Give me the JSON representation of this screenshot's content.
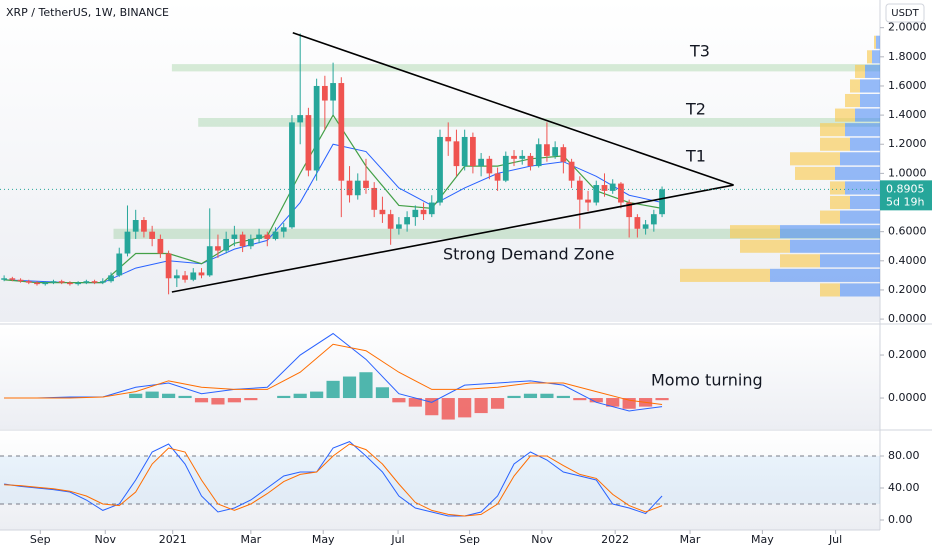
{
  "chart_data": [
    {
      "type": "candlestick",
      "title": "XRP / TetherUS, 1W, BINANCE",
      "currency": "USDT",
      "xlim": [
        -0.5,
        106.5
      ],
      "ylim": [
        -0.02,
        2.19
      ],
      "yticks": [
        {
          "value": 0,
          "label": "0.0000"
        },
        {
          "value": 0.2,
          "label": "0.2000"
        },
        {
          "value": 0.4,
          "label": "0.4000"
        },
        {
          "value": 0.6,
          "label": "0.6000"
        },
        {
          "value": 0.8,
          "label": "0.8000"
        },
        {
          "value": 1.0,
          "label": "1.0000"
        },
        {
          "value": 1.2,
          "label": "1.2000"
        },
        {
          "value": 1.4,
          "label": "1.4000"
        },
        {
          "value": 1.6,
          "label": "1.6000"
        },
        {
          "value": 1.8,
          "label": "1.8000"
        },
        {
          "value": 2.0,
          "label": "2.0000"
        }
      ],
      "up_color": "#26a69a",
      "down_color": "#ef5350",
      "candles": [
        [
          0.27,
          0.3,
          0.26,
          0.28
        ],
        [
          0.28,
          0.29,
          0.26,
          0.27
        ],
        [
          0.27,
          0.28,
          0.25,
          0.26
        ],
        [
          0.26,
          0.27,
          0.24,
          0.25
        ],
        [
          0.25,
          0.26,
          0.23,
          0.24
        ],
        [
          0.24,
          0.26,
          0.23,
          0.25
        ],
        [
          0.25,
          0.27,
          0.24,
          0.26
        ],
        [
          0.26,
          0.27,
          0.24,
          0.25
        ],
        [
          0.25,
          0.26,
          0.23,
          0.24
        ],
        [
          0.24,
          0.26,
          0.23,
          0.25
        ],
        [
          0.25,
          0.27,
          0.24,
          0.26
        ],
        [
          0.26,
          0.27,
          0.24,
          0.25
        ],
        [
          0.25,
          0.28,
          0.24,
          0.26
        ],
        [
          0.26,
          0.32,
          0.25,
          0.3
        ],
        [
          0.3,
          0.49,
          0.29,
          0.45
        ],
        [
          0.45,
          0.78,
          0.43,
          0.6
        ],
        [
          0.6,
          0.75,
          0.55,
          0.68
        ],
        [
          0.68,
          0.7,
          0.56,
          0.6
        ],
        [
          0.6,
          0.64,
          0.5,
          0.55
        ],
        [
          0.55,
          0.58,
          0.42,
          0.45
        ],
        [
          0.45,
          0.47,
          0.17,
          0.28
        ],
        [
          0.28,
          0.34,
          0.22,
          0.3
        ],
        [
          0.3,
          0.33,
          0.25,
          0.27
        ],
        [
          0.27,
          0.35,
          0.26,
          0.32
        ],
        [
          0.32,
          0.35,
          0.28,
          0.3
        ],
        [
          0.3,
          0.76,
          0.29,
          0.5
        ],
        [
          0.5,
          0.58,
          0.42,
          0.47
        ],
        [
          0.47,
          0.6,
          0.45,
          0.55
        ],
        [
          0.55,
          0.64,
          0.5,
          0.58
        ],
        [
          0.58,
          0.6,
          0.46,
          0.5
        ],
        [
          0.5,
          0.58,
          0.48,
          0.55
        ],
        [
          0.55,
          0.62,
          0.52,
          0.58
        ],
        [
          0.58,
          0.6,
          0.5,
          0.55
        ],
        [
          0.55,
          0.63,
          0.54,
          0.6
        ],
        [
          0.6,
          0.66,
          0.56,
          0.63
        ],
        [
          0.63,
          1.4,
          0.62,
          1.35
        ],
        [
          1.35,
          1.96,
          1.2,
          1.4
        ],
        [
          1.4,
          1.45,
          0.98,
          1.02
        ],
        [
          1.02,
          1.65,
          0.95,
          1.6
        ],
        [
          1.6,
          1.67,
          1.3,
          1.5
        ],
        [
          1.5,
          1.76,
          1.4,
          1.62
        ],
        [
          1.62,
          1.66,
          0.7,
          0.95
        ],
        [
          0.95,
          1.05,
          0.8,
          0.85
        ],
        [
          0.85,
          1.0,
          0.82,
          0.95
        ],
        [
          0.95,
          1.1,
          0.86,
          0.9
        ],
        [
          0.9,
          0.94,
          0.7,
          0.75
        ],
        [
          0.75,
          0.84,
          0.66,
          0.72
        ],
        [
          0.72,
          0.75,
          0.51,
          0.62
        ],
        [
          0.62,
          0.7,
          0.58,
          0.65
        ],
        [
          0.65,
          0.74,
          0.6,
          0.7
        ],
        [
          0.7,
          0.78,
          0.64,
          0.75
        ],
        [
          0.75,
          0.8,
          0.68,
          0.72
        ],
        [
          0.72,
          0.85,
          0.7,
          0.8
        ],
        [
          0.8,
          1.3,
          0.78,
          1.25
        ],
        [
          1.25,
          1.35,
          1.12,
          1.22
        ],
        [
          1.22,
          1.3,
          0.98,
          1.05
        ],
        [
          1.05,
          1.3,
          1.02,
          1.25
        ],
        [
          1.25,
          1.28,
          1.0,
          1.05
        ],
        [
          1.05,
          1.14,
          0.98,
          1.1
        ],
        [
          1.1,
          1.12,
          0.96,
          1.0
        ],
        [
          1.0,
          1.04,
          0.88,
          0.95
        ],
        [
          0.95,
          1.15,
          0.94,
          1.12
        ],
        [
          1.12,
          1.16,
          1.05,
          1.1
        ],
        [
          1.1,
          1.16,
          1.06,
          1.12
        ],
        [
          1.12,
          1.14,
          1.02,
          1.05
        ],
        [
          1.05,
          1.24,
          1.04,
          1.2
        ],
        [
          1.2,
          1.35,
          1.08,
          1.12
        ],
        [
          1.12,
          1.22,
          1.1,
          1.18
        ],
        [
          1.18,
          1.2,
          1.0,
          1.08
        ],
        [
          1.08,
          1.1,
          0.9,
          0.95
        ],
        [
          0.95,
          0.98,
          0.62,
          0.82
        ],
        [
          0.82,
          0.88,
          0.74,
          0.8
        ],
        [
          0.8,
          0.95,
          0.78,
          0.92
        ],
        [
          0.92,
          1.0,
          0.84,
          0.88
        ],
        [
          0.88,
          0.96,
          0.86,
          0.93
        ],
        [
          0.93,
          0.94,
          0.76,
          0.8
        ],
        [
          0.8,
          0.82,
          0.56,
          0.7
        ],
        [
          0.7,
          0.72,
          0.56,
          0.62
        ],
        [
          0.62,
          0.68,
          0.58,
          0.65
        ],
        [
          0.65,
          0.75,
          0.6,
          0.72
        ],
        [
          0.72,
          0.91,
          0.7,
          0.8905
        ]
      ],
      "ma_x": [
        0,
        4,
        8,
        12,
        16,
        20,
        24,
        28,
        32,
        36,
        40,
        44,
        48,
        52,
        56,
        60,
        64,
        68,
        72,
        76,
        80
      ],
      "ma_fast": {
        "color": "#43a047",
        "values": [
          0.27,
          0.25,
          0.25,
          0.25,
          0.45,
          0.45,
          0.38,
          0.52,
          0.57,
          1.0,
          1.4,
          1.05,
          0.78,
          0.76,
          1.05,
          1.05,
          1.1,
          1.12,
          0.88,
          0.8,
          0.76
        ]
      },
      "ma_slow": {
        "color": "#2962ff",
        "values": [
          0.27,
          0.26,
          0.25,
          0.25,
          0.35,
          0.4,
          0.38,
          0.48,
          0.54,
          0.8,
          1.2,
          1.15,
          0.9,
          0.78,
          0.9,
          1.0,
          1.05,
          1.08,
          0.98,
          0.85,
          0.8
        ]
      },
      "zones": [
        {
          "lo": 0.55,
          "hi": 0.62,
          "from": 13.3
        },
        {
          "lo": 1.32,
          "hi": 1.38,
          "from": 23.6
        },
        {
          "lo": 1.7,
          "hi": 1.75,
          "from": 20.4
        }
      ],
      "trendlines": [
        [
          35.1,
          1.965,
          88.7,
          0.92
        ],
        [
          20.4,
          0.186,
          88.7,
          0.92
        ]
      ],
      "volume_profile": {
        "levels": [
          0.2,
          0.3,
          0.4,
          0.5,
          0.6,
          0.7,
          0.8,
          0.9,
          1.0,
          1.1,
          1.2,
          1.3,
          1.4,
          1.5,
          1.6,
          1.7,
          1.8,
          1.9
        ],
        "up": [
          40,
          110,
          60,
          90,
          100,
          40,
          30,
          35,
          45,
          40,
          30,
          35,
          25,
          20,
          20,
          15,
          8,
          4
        ],
        "down": [
          20,
          90,
          40,
          50,
          50,
          20,
          20,
          15,
          40,
          50,
          30,
          25,
          20,
          15,
          10,
          10,
          5,
          2
        ]
      },
      "annotations": [
        "T3",
        "T2",
        "T1",
        "Strong Demand Zone"
      ],
      "last_price": 0.8905,
      "countdown": "5d 19h"
    },
    {
      "type": "macd",
      "xlim": [
        -0.5,
        106.5
      ],
      "ylim": [
        -0.144,
        0.335
      ],
      "yticks": [
        {
          "value": 0,
          "label": "0.0000"
        },
        {
          "value": 0.2,
          "label": "0.2000"
        }
      ],
      "x": [
        0,
        4,
        8,
        12,
        16,
        20,
        24,
        28,
        32,
        36,
        40,
        44,
        48,
        52,
        56,
        60,
        64,
        68,
        72,
        76,
        80
      ],
      "line": {
        "color": "#2962ff",
        "values": [
          0,
          0,
          0.005,
          0.005,
          0.05,
          0.07,
          0.02,
          0.04,
          0.05,
          0.2,
          0.3,
          0.18,
          0.02,
          -0.02,
          0.06,
          0.07,
          0.08,
          0.06,
          -0.02,
          -0.06,
          -0.04
        ]
      },
      "signal": {
        "color": "#ff6d00",
        "values": [
          0,
          0,
          0,
          0.005,
          0.03,
          0.08,
          0.05,
          0.04,
          0.04,
          0.12,
          0.25,
          0.22,
          0.12,
          0.04,
          0.04,
          0.05,
          0.07,
          0.07,
          0.03,
          -0.01,
          -0.03
        ]
      },
      "hist_x": [
        0,
        2,
        4,
        6,
        8,
        10,
        12,
        14,
        16,
        18,
        20,
        22,
        24,
        26,
        28,
        30,
        32,
        34,
        36,
        38,
        40,
        42,
        44,
        46,
        48,
        50,
        52,
        54,
        56,
        58,
        60,
        62,
        64,
        66,
        68,
        70,
        72,
        74,
        76,
        78,
        80
      ],
      "hist": [
        0,
        0,
        0,
        0,
        0,
        0,
        0,
        0,
        0.02,
        0.03,
        0.02,
        0.01,
        -0.02,
        -0.03,
        -0.02,
        -0.01,
        0,
        0.01,
        0.02,
        0.03,
        0.08,
        0.1,
        0.12,
        0.05,
        -0.02,
        -0.04,
        -0.08,
        -0.1,
        -0.09,
        -0.07,
        -0.05,
        0.01,
        0.02,
        0.02,
        0.01,
        -0.01,
        -0.02,
        -0.04,
        -0.05,
        -0.04,
        -0.01
      ],
      "up_color": "#26a69a",
      "down_color": "#ef5350",
      "annotation": "Momo turning"
    },
    {
      "type": "stochastic",
      "xlim": [
        -0.5,
        106.5
      ],
      "ylim": [
        -12.5,
        111.25
      ],
      "yticks": [
        {
          "value": 0,
          "label": "0.00"
        },
        {
          "value": 40,
          "label": "40.00"
        },
        {
          "value": 80,
          "label": "80.00"
        }
      ],
      "bands": [
        20,
        80
      ],
      "x": [
        0,
        2,
        4,
        6,
        8,
        10,
        12,
        14,
        16,
        18,
        20,
        22,
        24,
        26,
        28,
        30,
        32,
        34,
        36,
        38,
        40,
        42,
        44,
        46,
        48,
        50,
        52,
        54,
        56,
        58,
        60,
        62,
        64,
        66,
        68,
        70,
        72,
        74,
        76,
        78,
        80
      ],
      "k": {
        "color": "#2962ff",
        "values": [
          45,
          42,
          40,
          38,
          35,
          25,
          12,
          20,
          50,
          85,
          95,
          70,
          30,
          10,
          15,
          25,
          40,
          55,
          60,
          60,
          90,
          98,
          80,
          60,
          30,
          15,
          10,
          5,
          5,
          10,
          30,
          70,
          85,
          75,
          60,
          55,
          50,
          20,
          15,
          8,
          30
        ]
      },
      "d": {
        "color": "#ff6d00",
        "values": [
          44,
          43,
          41,
          39,
          36,
          30,
          20,
          18,
          35,
          70,
          90,
          85,
          50,
          20,
          12,
          20,
          33,
          48,
          57,
          60,
          80,
          95,
          88,
          70,
          45,
          22,
          12,
          7,
          5,
          7,
          20,
          55,
          80,
          80,
          68,
          57,
          52,
          32,
          18,
          10,
          18
        ]
      },
      "xticks": [
        {
          "value": 4.4,
          "label": "Sep"
        },
        {
          "value": 12.3,
          "label": "Nov"
        },
        {
          "value": 20.5,
          "label": "2021"
        },
        {
          "value": 30,
          "label": "Mar"
        },
        {
          "value": 38.8,
          "label": "May"
        },
        {
          "value": 47.9,
          "label": "Jul"
        },
        {
          "value": 56.6,
          "label": "Sep"
        },
        {
          "value": 65.4,
          "label": "Nov"
        },
        {
          "value": 74.3,
          "label": "2022"
        },
        {
          "value": 83.4,
          "label": "Mar"
        },
        {
          "value": 92.2,
          "label": "May"
        },
        {
          "value": 101.1,
          "label": "Jul"
        }
      ]
    }
  ]
}
